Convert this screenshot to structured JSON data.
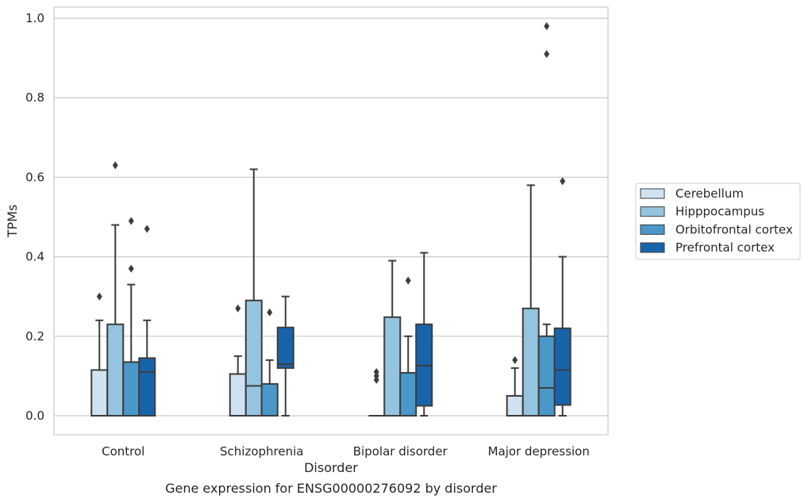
{
  "caption": "Gene expression for ENSG00000276092 by disorder",
  "chart_data": {
    "type": "boxplot",
    "xlabel": "Disorder",
    "ylabel": "TPMs",
    "ylim": [
      -0.045,
      1.03
    ],
    "yticks": [
      0.0,
      0.2,
      0.4,
      0.6,
      0.8,
      1.0
    ],
    "ytick_labels": [
      "0.0",
      "0.2",
      "0.4",
      "0.6",
      "0.8",
      "1.0"
    ],
    "grid": true,
    "legend_position": "right",
    "categories": [
      "Control",
      "Schizophrenia",
      "Bipolar disorder",
      "Major depression"
    ],
    "series": [
      {
        "name": "Cerebellum",
        "color": "#d0e1f2",
        "boxes": [
          {
            "whislo": 0.0,
            "q1": 0.0,
            "med": 0.0,
            "q3": 0.115,
            "whishi": 0.24,
            "fliers": [
              0.3
            ]
          },
          {
            "whislo": 0.0,
            "q1": 0.0,
            "med": 0.0,
            "q3": 0.105,
            "whishi": 0.15,
            "fliers": [
              0.27
            ]
          },
          {
            "whislo": 0.0,
            "q1": 0.0,
            "med": 0.0,
            "q3": 0.0,
            "whishi": 0.0,
            "fliers": [
              0.09,
              0.1,
              0.11
            ]
          },
          {
            "whislo": 0.0,
            "q1": 0.0,
            "med": 0.0,
            "q3": 0.05,
            "whishi": 0.12,
            "fliers": [
              0.14
            ]
          }
        ]
      },
      {
        "name": "Hipppocampus",
        "color": "#94c4df",
        "boxes": [
          {
            "whislo": 0.0,
            "q1": 0.0,
            "med": 0.0,
            "q3": 0.23,
            "whishi": 0.48,
            "fliers": [
              0.63
            ]
          },
          {
            "whislo": 0.0,
            "q1": 0.0,
            "med": 0.075,
            "q3": 0.29,
            "whishi": 0.62,
            "fliers": []
          },
          {
            "whislo": 0.0,
            "q1": 0.0,
            "med": 0.0,
            "q3": 0.248,
            "whishi": 0.39,
            "fliers": []
          },
          {
            "whislo": 0.0,
            "q1": 0.0,
            "med": 0.0,
            "q3": 0.27,
            "whishi": 0.58,
            "fliers": []
          }
        ]
      },
      {
        "name": "Orbitofrontal cortex",
        "color": "#4a98c9",
        "boxes": [
          {
            "whislo": 0.0,
            "q1": 0.0,
            "med": 0.0,
            "q3": 0.135,
            "whishi": 0.33,
            "fliers": [
              0.37,
              0.49
            ]
          },
          {
            "whislo": 0.0,
            "q1": 0.0,
            "med": 0.0,
            "q3": 0.08,
            "whishi": 0.14,
            "fliers": [
              0.26
            ]
          },
          {
            "whislo": 0.0,
            "q1": 0.0,
            "med": 0.0,
            "q3": 0.108,
            "whishi": 0.2,
            "fliers": [
              0.34
            ]
          },
          {
            "whislo": 0.0,
            "q1": 0.0,
            "med": 0.07,
            "q3": 0.2,
            "whishi": 0.23,
            "fliers": [
              0.91,
              0.98
            ]
          }
        ]
      },
      {
        "name": "Prefrontal cortex",
        "color": "#1764ab",
        "boxes": [
          {
            "whislo": 0.0,
            "q1": 0.0,
            "med": 0.11,
            "q3": 0.145,
            "whishi": 0.24,
            "fliers": [
              0.47
            ]
          },
          {
            "whislo": 0.0,
            "q1": 0.12,
            "med": 0.13,
            "q3": 0.222,
            "whishi": 0.3,
            "fliers": []
          },
          {
            "whislo": 0.0,
            "q1": 0.025,
            "med": 0.126,
            "q3": 0.23,
            "whishi": 0.41,
            "fliers": []
          },
          {
            "whislo": 0.0,
            "q1": 0.027,
            "med": 0.115,
            "q3": 0.22,
            "whishi": 0.4,
            "fliers": [
              0.59
            ]
          }
        ]
      }
    ]
  }
}
